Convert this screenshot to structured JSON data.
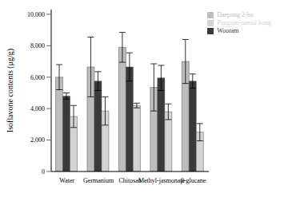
{
  "chart_data": {
    "type": "bar",
    "y_label": "Isoflavone contents (μg/g)",
    "categories": [
      "Water",
      "Germanium",
      "Chitosan",
      "Methyl-jasmonate",
      "β-glucane"
    ],
    "series": [
      {
        "name": "Daepung 2-ho",
        "color": "#bdbdbd",
        "values": [
          6000,
          6650,
          7900,
          5350,
          7000
        ],
        "errors": [
          800,
          1900,
          950,
          1500,
          1400
        ]
      },
      {
        "name": "Wooram",
        "color": "#3a3a3a",
        "values": [
          4800,
          5750,
          6650,
          5950,
          5750
        ],
        "errors": [
          200,
          600,
          900,
          800,
          450
        ]
      },
      {
        "name": "Pungsan-namul kong",
        "color": "#d4d4d4",
        "values": [
          3500,
          3850,
          4200,
          3800,
          2500
        ],
        "errors": [
          700,
          900,
          150,
          500,
          550
        ]
      }
    ],
    "ylim": [
      0,
      10300
    ],
    "yticks": [
      0,
      {
        "value": 2000,
        "label": "2,000"
      },
      {
        "value": 4000,
        "label": "4,000"
      },
      {
        "value": 6000,
        "label": "6,000"
      },
      {
        "value": 8000,
        "label": "8,000"
      },
      {
        "value": 10000,
        "label": "10,000"
      }
    ],
    "legend": "upper right",
    "grid": false
  }
}
